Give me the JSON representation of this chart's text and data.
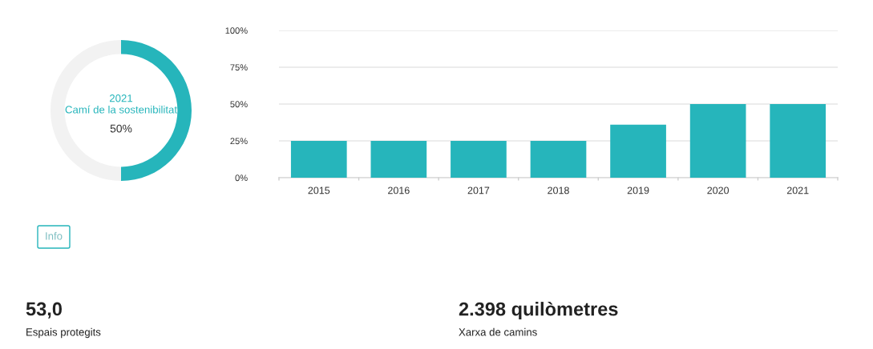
{
  "chart_data": [
    {
      "type": "donut",
      "title": "2021\nCamí de la sostenibilitat",
      "categories": [
        null,
        null
      ],
      "values": [
        50,
        50
      ],
      "colors": [
        "#26b5bb",
        "#f2f2f2"
      ],
      "value_labels": [
        "50%",
        null
      ],
      "legend": false
    },
    {
      "type": "bar",
      "categories": [
        "2015",
        "2016",
        "2017",
        "2018",
        "2019",
        "2020",
        "2021"
      ],
      "series": [
        {
          "color": "#26b5bb",
          "values": [
            25,
            25,
            25,
            25,
            36,
            50,
            50
          ]
        }
      ],
      "ylim": [
        0,
        100
      ],
      "yticks": [
        {
          "value": 0,
          "label": "0%"
        },
        {
          "value": 25,
          "label": "25%"
        },
        {
          "value": 50,
          "label": "50%"
        },
        {
          "value": 75,
          "label": "75%"
        },
        {
          "value": 100,
          "label": "100%"
        }
      ],
      "grid": "y",
      "legend": false
    },
    {
      "type": "other",
      "annotations": [
        "Info",
        "53,0",
        "Espais protegits",
        "2.398 quilòmetres",
        "Xarxa de camins"
      ]
    }
  ]
}
